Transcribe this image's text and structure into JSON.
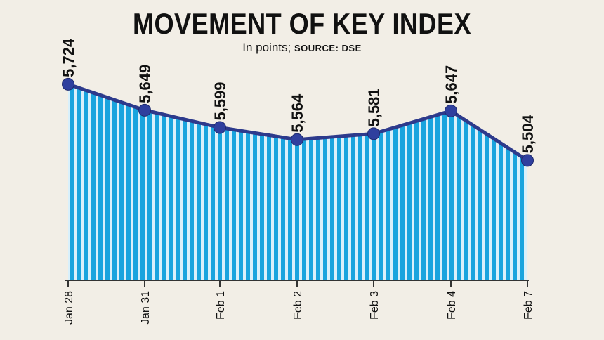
{
  "title": "MOVEMENT OF KEY INDEX",
  "subtitle": {
    "unit": "In points;",
    "source": "SOURCE: DSE"
  },
  "colors": {
    "background": "#f2eee6",
    "line": "#2d3a8c",
    "marker": "#2f3f9e",
    "stripe_dark": "#19a4de",
    "stripe_light": "#d9f0fb",
    "text": "#111111"
  },
  "chart_data": {
    "type": "area",
    "categories": [
      "Jan 28",
      "Jan 31",
      "Feb 1",
      "Feb 2",
      "Feb 3",
      "Feb 4",
      "Feb 7"
    ],
    "series": [
      {
        "values": [
          5724,
          5649,
          5599,
          5564,
          5581,
          5647,
          5504
        ],
        "labels": [
          "5,724",
          "5,649",
          "5,599",
          "5,564",
          "5,581",
          "5,647",
          "5,504"
        ]
      }
    ],
    "ylim": [
      5160,
      5740
    ],
    "xlabel": "",
    "ylabel": "",
    "grid": false,
    "legend": "none"
  }
}
